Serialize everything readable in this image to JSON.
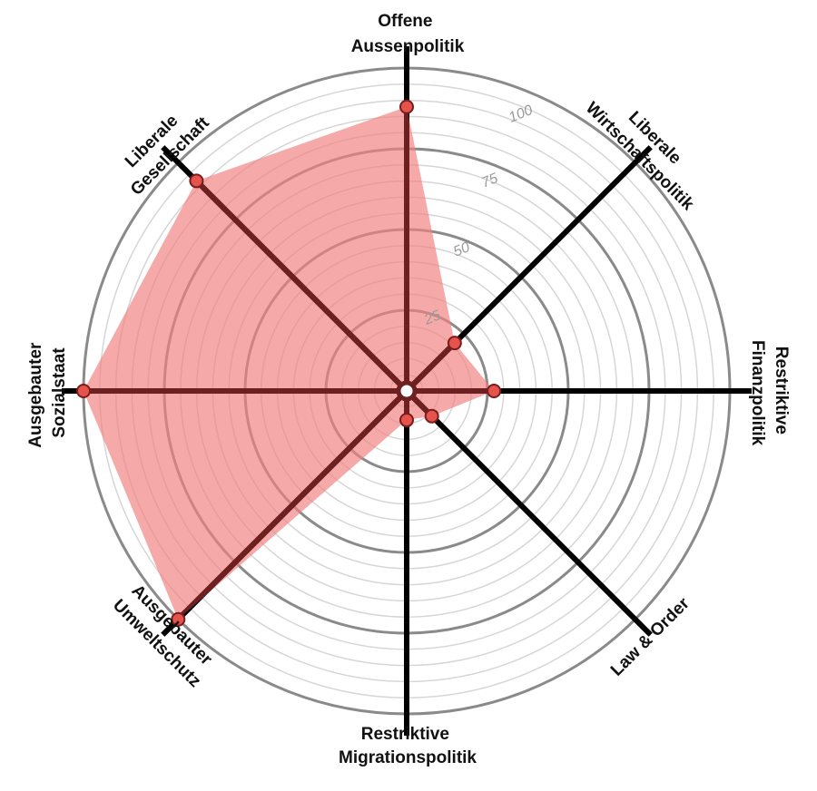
{
  "chart_data": {
    "type": "radar",
    "axes": [
      {
        "key": "offene_aussenpolitik",
        "lines": [
          "Offene",
          "Aussenpolitik"
        ],
        "value": 88
      },
      {
        "key": "liberale_wirtschaftspolitik",
        "lines": [
          "Liberale",
          "Wirtschaftspolitik"
        ],
        "value": 21
      },
      {
        "key": "restriktive_finanzpolitik",
        "lines": [
          "Restriktive",
          "Finanzpolitik"
        ],
        "value": 27
      },
      {
        "key": "law_and_order",
        "lines": [
          "Law & Order"
        ],
        "value": 11
      },
      {
        "key": "restriktive_migrationspolitik",
        "lines": [
          "Restriktive",
          "Migrationspolitik"
        ],
        "value": 9
      },
      {
        "key": "ausgebauter_umweltschutz",
        "lines": [
          "Ausgebauter",
          "Umweltschutz"
        ],
        "value": 100
      },
      {
        "key": "ausgebauter_sozialstaat",
        "lines": [
          "Ausgebauter",
          "Sozialstaat"
        ],
        "value": 100
      },
      {
        "key": "liberale_gesellschaft",
        "lines": [
          "Liberale",
          "Gesellschaft"
        ],
        "value": 92
      }
    ],
    "rlim": [
      0,
      100
    ],
    "grid": true,
    "tick_labels": [
      "25",
      "50",
      "75",
      "100"
    ],
    "tick_values": [
      25,
      50,
      75,
      100
    ],
    "colors": {
      "fill": "#f08080",
      "point_fill": "#e4544c",
      "point_stroke": "#7a1c1c",
      "axis": "#000000",
      "axis_inside": "#6e2020",
      "ring_major": "#8a8a8a",
      "ring_minor": "#d6d6d6"
    }
  }
}
